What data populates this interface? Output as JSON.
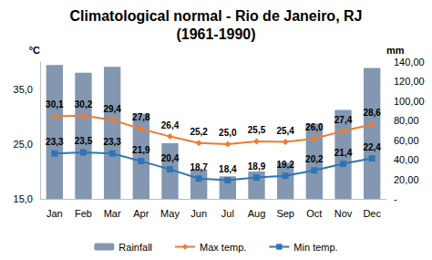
{
  "chart_data": {
    "type": "bar",
    "title": "Climatological normal - Rio de Janeiro, RJ",
    "subtitle": "(1961-1990)",
    "ylabel": "°C",
    "y2label": "mm",
    "categories": [
      "Jan",
      "Feb",
      "Mar",
      "Apr",
      "May",
      "Jun",
      "Jul",
      "Aug",
      "Sep",
      "Oct",
      "Nov",
      "Dec"
    ],
    "ylim": [
      15,
      40
    ],
    "yticks": [
      {
        "value": 15,
        "label": "15,0"
      },
      {
        "value": 25,
        "label": "25,0"
      },
      {
        "value": 35,
        "label": "35,0"
      }
    ],
    "y2lim": [
      0,
      140
    ],
    "y2ticks": [
      {
        "value": 0,
        "label": "-"
      },
      {
        "value": 20,
        "label": "20,00"
      },
      {
        "value": 40,
        "label": "40,00"
      },
      {
        "value": 60,
        "label": "60,00"
      },
      {
        "value": 80,
        "label": "80,00"
      },
      {
        "value": 100,
        "label": "100,00"
      },
      {
        "value": 120,
        "label": "120,00"
      },
      {
        "value": 140,
        "label": "140,00"
      }
    ],
    "grid": false,
    "legend": "bottom",
    "series": [
      {
        "name": "Rainfall",
        "type": "bar",
        "axis": "y2",
        "color": "#8497b0",
        "values": [
          137,
          129,
          135,
          87,
          57,
          30,
          23,
          28,
          37,
          77,
          91,
          134
        ]
      },
      {
        "name": "Max temp.",
        "type": "line",
        "color": "#ed7d31",
        "marker": "diamond",
        "data_labels": true,
        "values": [
          30.1,
          30.2,
          29.4,
          27.8,
          26.4,
          25.2,
          25.0,
          25.5,
          25.4,
          26.0,
          27.4,
          28.6
        ],
        "value_labels": [
          "30,1",
          "30,2",
          "29,4",
          "27,8",
          "26,4",
          "25,2",
          "25,0",
          "25,5",
          "25,4",
          "26,0",
          "27,4",
          "28,6"
        ]
      },
      {
        "name": "Min temp.",
        "type": "line",
        "color": "#2e75b6",
        "marker": "square",
        "data_labels": true,
        "values": [
          23.3,
          23.5,
          23.3,
          21.9,
          20.4,
          18.7,
          18.4,
          18.9,
          19.2,
          20.2,
          21.4,
          22.4
        ],
        "value_labels": [
          "23,3",
          "23,5",
          "23,3",
          "21,9",
          "20,4",
          "18,7",
          "18,4",
          "18,9",
          "19,2",
          "20,2",
          "21,4",
          "22,4"
        ]
      }
    ]
  }
}
